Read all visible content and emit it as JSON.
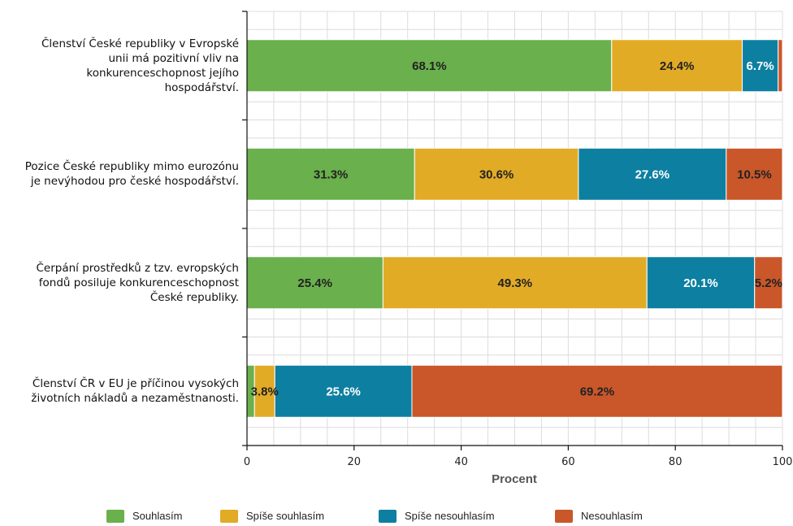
{
  "chart_data": {
    "type": "bar",
    "orientation": "horizontal",
    "stacked": true,
    "categories": [
      "Členství České republiky v Evropské unii má pozitivní vliv na konkurenceschopnost jejího hospodářství.",
      "Pozice České republiky mimo eurozónu je nevýhodou pro české hospodářství.",
      "Čerpání prostředků z tzv. evropských fondů posiluje konkurenceschopnost České republiky.",
      "Členství ČR v EU je příčinou vysokých životních nákladů a nezaměstnanosti."
    ],
    "category_lines": [
      [
        "Členství České republiky v Evropské",
        "unii má pozitivní vliv na",
        "konkurenceschopnost jejího",
        "hospodářství."
      ],
      [
        "Pozice České republiky mimo eurozónu",
        "je nevýhodou pro české hospodářství."
      ],
      [
        "Čerpání prostředků z tzv. evropských",
        "fondů posiluje konkurenceschopnost",
        "České republiky."
      ],
      [
        "Členství ČR v EU je příčinou vysokých",
        "životních nákladů a nezaměstnanosti."
      ]
    ],
    "series": [
      {
        "name": "Souhlasím",
        "color": "#6ab04c",
        "values": [
          68.1,
          31.3,
          25.4,
          1.4
        ],
        "labels": [
          "68.1%",
          "31.3%",
          "25.4%",
          ""
        ]
      },
      {
        "name": "Spíše souhlasím",
        "color": "#e2ab26",
        "values": [
          24.4,
          30.6,
          49.3,
          3.8
        ],
        "labels": [
          "24.4%",
          "30.6%",
          "49.3%",
          "3.8%"
        ]
      },
      {
        "name": "Spíše nesouhlasím",
        "color": "#0d7fa1",
        "values": [
          6.7,
          27.6,
          20.1,
          25.6
        ],
        "labels": [
          "6.7%",
          "27.6%",
          "20.1%",
          "25.6%"
        ]
      },
      {
        "name": "Nesouhlasím",
        "color": "#c9572a",
        "values": [
          0.8,
          10.5,
          5.2,
          69.2
        ],
        "labels": [
          "",
          "10.5%",
          "5.2%",
          "69.2%"
        ]
      }
    ],
    "xlabel": "Procent",
    "xlim": [
      0,
      100
    ],
    "xticks": [
      0,
      20,
      40,
      60,
      80,
      100
    ],
    "grid": true,
    "legend_position": "bottom"
  }
}
